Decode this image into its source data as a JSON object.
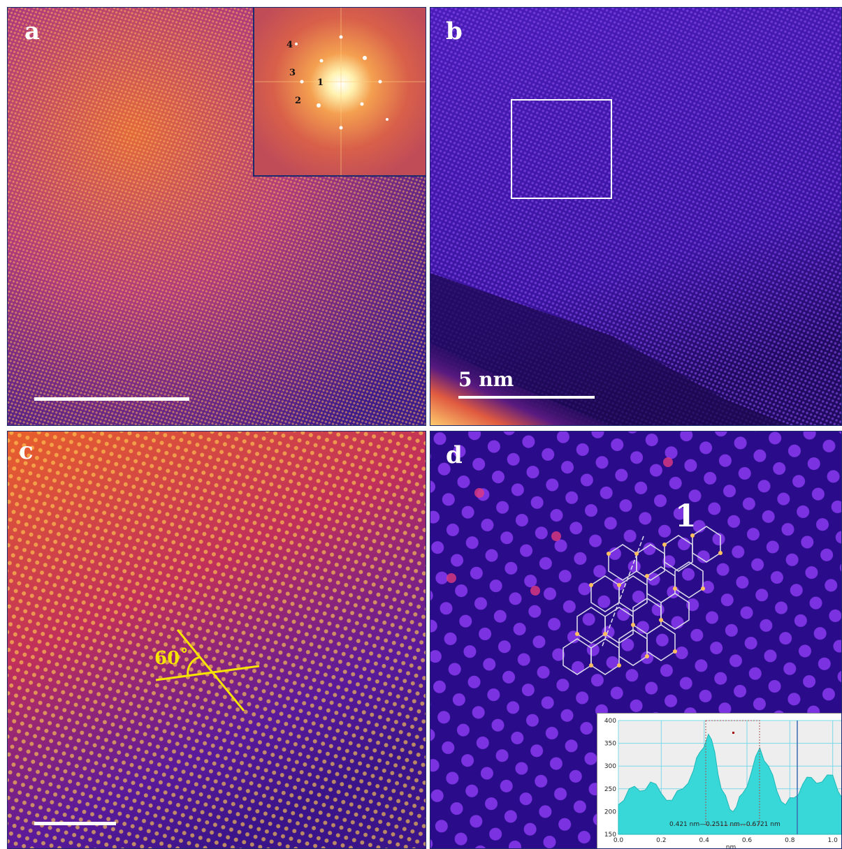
{
  "figure": {
    "panels": [
      {
        "id": "a",
        "label": "a"
      },
      {
        "id": "b",
        "label": "b"
      },
      {
        "id": "c",
        "label": "c"
      },
      {
        "id": "d",
        "label": "d"
      }
    ],
    "fft_inset": {
      "spot_labels": [
        "1",
        "2",
        "3",
        "4"
      ]
    },
    "scale_bar": {
      "label": "5 nm"
    },
    "angle": {
      "label": "60˚"
    },
    "region": {
      "label": "1"
    }
  },
  "chart_data": {
    "type": "area",
    "title": "",
    "xlabel": "nm",
    "ylabel": "",
    "xlim": [
      0.0,
      1.05
    ],
    "ylim": [
      150,
      400
    ],
    "x_ticks": [
      "0.0",
      "0.2",
      "0.4",
      "0.6",
      "0.8",
      "1.0"
    ],
    "y_ticks": [
      "150",
      "200",
      "250",
      "300",
      "350",
      "400"
    ],
    "grid": true,
    "series": [
      {
        "x": [
          0.0,
          0.05,
          0.1,
          0.15,
          0.2,
          0.25,
          0.3,
          0.35,
          0.38,
          0.42,
          0.45,
          0.48,
          0.52,
          0.55,
          0.58,
          0.62,
          0.66,
          0.7,
          0.74,
          0.78,
          0.82,
          0.86,
          0.9,
          0.95,
          1.0,
          1.05
        ],
        "values": [
          215,
          250,
          245,
          265,
          240,
          225,
          250,
          290,
          330,
          370,
          330,
          250,
          205,
          210,
          240,
          285,
          340,
          300,
          245,
          215,
          230,
          260,
          275,
          265,
          280,
          225
        ]
      }
    ],
    "annotation": "0.421 nm—0.2511 nm—0.6721 nm"
  }
}
